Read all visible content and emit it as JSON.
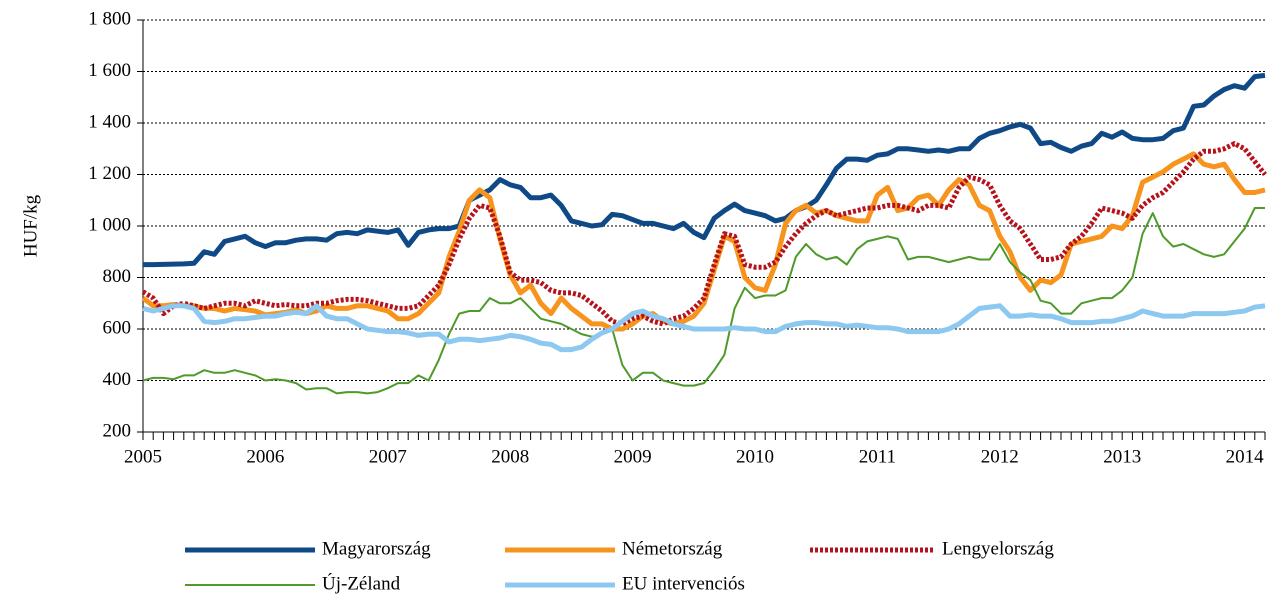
{
  "chart_data": {
    "type": "line",
    "y_label": "HUF/kg",
    "categories": [
      "2005",
      null,
      null,
      null,
      null,
      null,
      null,
      null,
      null,
      null,
      null,
      null,
      "2006",
      null,
      null,
      null,
      null,
      null,
      null,
      null,
      null,
      null,
      null,
      null,
      "2007",
      null,
      null,
      null,
      null,
      null,
      null,
      null,
      null,
      null,
      null,
      null,
      "2008",
      null,
      null,
      null,
      null,
      null,
      null,
      null,
      null,
      null,
      null,
      null,
      "2009",
      null,
      null,
      null,
      null,
      null,
      null,
      null,
      null,
      null,
      null,
      null,
      "2010",
      null,
      null,
      null,
      null,
      null,
      null,
      null,
      null,
      null,
      null,
      null,
      "2011",
      null,
      null,
      null,
      null,
      null,
      null,
      null,
      null,
      null,
      null,
      null,
      "2012",
      null,
      null,
      null,
      null,
      null,
      null,
      null,
      null,
      null,
      null,
      null,
      "2013",
      null,
      null,
      null,
      null,
      null,
      null,
      null,
      null,
      null,
      null,
      null,
      "2014",
      null,
      null
    ],
    "ylim": [
      200,
      1800
    ],
    "yticks": [
      200,
      400,
      600,
      800,
      {
        "value": 1000,
        "label": "1 000"
      },
      {
        "value": 1200,
        "label": "1 200"
      },
      {
        "value": 1400,
        "label": "1 400"
      },
      {
        "value": 1600,
        "label": "1 600"
      },
      {
        "value": 1800,
        "label": "1 800"
      }
    ],
    "grid": true,
    "legend": "bottom",
    "series": [
      {
        "name": "Magyarország",
        "color": "#0f4a87",
        "line_width": 5,
        "dotted": false,
        "values": [
          850,
          850,
          851,
          852,
          853,
          855,
          900,
          890,
          940,
          950,
          960,
          935,
          920,
          935,
          935,
          945,
          950,
          950,
          945,
          970,
          975,
          970,
          985,
          980,
          975,
          985,
          925,
          975,
          985,
          990,
          990,
          1000,
          1100,
          1120,
          1140,
          1180,
          1160,
          1150,
          1110,
          1110,
          1120,
          1080,
          1020,
          1010,
          1000,
          1005,
          1045,
          1040,
          1025,
          1010,
          1010,
          1000,
          990,
          1010,
          975,
          955,
          1030,
          1060,
          1085,
          1060,
          1050,
          1040,
          1020,
          1030,
          1060,
          1075,
          1100,
          1160,
          1225,
          1260,
          1260,
          1255,
          1275,
          1280,
          1300,
          1300,
          1295,
          1290,
          1295,
          1290,
          1300,
          1300,
          1340,
          1360,
          1370,
          1385,
          1395,
          1380,
          1320,
          1325,
          1305,
          1290,
          1310,
          1320,
          1360,
          1345,
          1365,
          1340,
          1335,
          1335,
          1340,
          1370,
          1380,
          1465,
          1470,
          1505,
          1530,
          1545,
          1535,
          1580,
          1585
        ]
      },
      {
        "name": "Németország",
        "color": "#f7941d",
        "line_width": 5,
        "dotted": false,
        "values": [
          720,
          690,
          690,
          695,
          690,
          690,
          680,
          680,
          670,
          680,
          675,
          670,
          655,
          660,
          665,
          675,
          660,
          670,
          690,
          680,
          680,
          690,
          690,
          680,
          670,
          640,
          640,
          660,
          700,
          740,
          880,
          980,
          1100,
          1140,
          1110,
          950,
          810,
          740,
          770,
          700,
          660,
          720,
          680,
          650,
          620,
          620,
          600,
          600,
          620,
          650,
          660,
          630,
          620,
          630,
          650,
          700,
          830,
          960,
          940,
          800,
          760,
          750,
          850,
          1010,
          1060,
          1080,
          1050,
          1060,
          1040,
          1030,
          1020,
          1020,
          1120,
          1150,
          1060,
          1070,
          1110,
          1120,
          1080,
          1140,
          1180,
          1160,
          1080,
          1060,
          960,
          900,
          800,
          750,
          790,
          780,
          810,
          930,
          940,
          950,
          960,
          1000,
          990,
          1040,
          1170,
          1190,
          1210,
          1240,
          1260,
          1280,
          1240,
          1230,
          1240,
          1180,
          1130,
          1130,
          1140
        ]
      },
      {
        "name": "Lengyelország",
        "color": "#b5121b",
        "line_width": 5,
        "dotted": true,
        "values": [
          745,
          720,
          660,
          690,
          700,
          690,
          680,
          690,
          700,
          700,
          690,
          710,
          700,
          690,
          695,
          690,
          690,
          700,
          700,
          710,
          715,
          715,
          710,
          700,
          690,
          680,
          680,
          690,
          730,
          770,
          850,
          950,
          1030,
          1080,
          1070,
          960,
          820,
          790,
          790,
          780,
          750,
          740,
          740,
          730,
          700,
          670,
          630,
          620,
          640,
          650,
          630,
          620,
          640,
          650,
          680,
          720,
          850,
          970,
          960,
          850,
          840,
          840,
          860,
          920,
          970,
          1010,
          1040,
          1060,
          1040,
          1050,
          1060,
          1070,
          1070,
          1080,
          1080,
          1070,
          1060,
          1080,
          1080,
          1070,
          1150,
          1190,
          1180,
          1160,
          1080,
          1020,
          990,
          930,
          870,
          870,
          880,
          930,
          960,
          1010,
          1070,
          1060,
          1050,
          1030,
          1080,
          1110,
          1130,
          1170,
          1210,
          1260,
          1290,
          1290,
          1300,
          1320,
          1300,
          1250,
          1200
        ]
      },
      {
        "name": "Új-Zéland",
        "color": "#4e9a2a",
        "line_width": 2,
        "dotted": false,
        "values": [
          400,
          410,
          410,
          405,
          420,
          420,
          440,
          430,
          430,
          440,
          430,
          420,
          400,
          405,
          400,
          390,
          365,
          370,
          370,
          350,
          355,
          355,
          350,
          355,
          370,
          390,
          390,
          420,
          400,
          480,
          580,
          660,
          670,
          670,
          720,
          700,
          700,
          720,
          680,
          640,
          630,
          620,
          600,
          580,
          570,
          580,
          600,
          460,
          400,
          430,
          430,
          400,
          390,
          380,
          380,
          390,
          440,
          500,
          680,
          760,
          720,
          730,
          730,
          750,
          880,
          930,
          890,
          870,
          880,
          850,
          910,
          940,
          950,
          960,
          950,
          870,
          880,
          880,
          870,
          860,
          870,
          880,
          870,
          870,
          930,
          860,
          820,
          790,
          710,
          700,
          660,
          660,
          700,
          710,
          720,
          720,
          750,
          800,
          970,
          1050,
          960,
          920,
          930,
          910,
          890,
          880,
          890,
          940,
          990,
          1070,
          1070
        ]
      },
      {
        "name": "EU intervenciós",
        "color": "#8cc8f0",
        "line_width": 5,
        "dotted": false,
        "values": [
          680,
          670,
          680,
          690,
          690,
          680,
          630,
          625,
          630,
          640,
          640,
          645,
          650,
          650,
          660,
          665,
          660,
          690,
          650,
          640,
          640,
          620,
          600,
          595,
          590,
          590,
          585,
          575,
          580,
          580,
          550,
          560,
          560,
          555,
          560,
          565,
          575,
          570,
          560,
          545,
          540,
          520,
          520,
          530,
          560,
          585,
          600,
          630,
          660,
          670,
          650,
          640,
          620,
          610,
          600,
          600,
          600,
          600,
          605,
          600,
          600,
          590,
          590,
          610,
          620,
          625,
          625,
          620,
          620,
          610,
          615,
          610,
          605,
          605,
          600,
          590,
          590,
          590,
          590,
          600,
          620,
          650,
          680,
          685,
          690,
          650,
          650,
          655,
          650,
          650,
          640,
          625,
          625,
          625,
          630,
          630,
          640,
          650,
          670,
          660,
          650,
          650,
          650,
          660,
          660,
          660,
          660,
          665,
          670,
          685,
          690
        ]
      }
    ]
  }
}
